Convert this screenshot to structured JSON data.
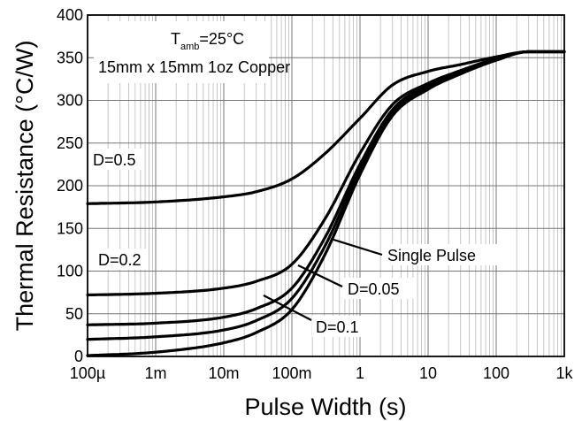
{
  "chart_data": {
    "type": "line",
    "xscale": "log",
    "xlim": [
      0.0001,
      1000
    ],
    "ylim": [
      0,
      400
    ],
    "grid": true,
    "xlabel": "Pulse Width (s)",
    "ylabel": "Thermal Resistance (°C/W)",
    "xtick_labels": [
      "100µ",
      "1m",
      "10m",
      "100m",
      "1",
      "10",
      "100",
      "1k"
    ],
    "ytick_labels": [
      "0",
      "50",
      "100",
      "150",
      "200",
      "250",
      "300",
      "350",
      "400"
    ],
    "annotations": {
      "t_main": "T",
      "t_sub": "amb",
      "t_rest": "=25°C",
      "copper": "15mm x 15mm 1oz Copper"
    },
    "series": [
      {
        "name": "D=0.5",
        "x": [
          0.0001,
          0.001,
          0.01,
          0.03,
          0.1,
          0.3,
          1,
          3,
          10,
          30,
          100,
          300,
          1000
        ],
        "y": [
          179,
          181,
          187,
          193,
          208,
          237,
          279,
          318,
          334,
          342,
          351,
          357,
          357
        ]
      },
      {
        "name": "D=0.2",
        "x": [
          0.0001,
          0.001,
          0.01,
          0.03,
          0.1,
          0.3,
          1,
          3,
          10,
          30,
          100,
          300,
          1000
        ],
        "y": [
          72,
          74,
          80,
          88,
          108,
          160,
          238,
          295,
          320,
          335,
          349,
          357,
          357
        ]
      },
      {
        "name": "D=0.1",
        "x": [
          0.0001,
          0.001,
          0.01,
          0.03,
          0.1,
          0.3,
          1,
          3,
          10,
          30,
          100,
          300,
          1000
        ],
        "y": [
          37,
          39,
          46,
          56,
          80,
          138,
          225,
          289,
          318,
          334,
          348,
          357,
          357
        ]
      },
      {
        "name": "D=0.05",
        "x": [
          0.0001,
          0.001,
          0.01,
          0.03,
          0.1,
          0.3,
          1,
          3,
          10,
          30,
          100,
          300,
          1000
        ],
        "y": [
          20,
          23,
          31,
          42,
          68,
          128,
          219,
          285,
          315,
          332,
          348,
          357,
          357
        ]
      },
      {
        "name": "Single Pulse",
        "x": [
          0.0001,
          0.001,
          0.01,
          0.03,
          0.1,
          0.3,
          1,
          3,
          10,
          30,
          100,
          300,
          1000
        ],
        "y": [
          1,
          5,
          16,
          28,
          55,
          118,
          213,
          282,
          313,
          331,
          347,
          357,
          357
        ]
      }
    ]
  }
}
